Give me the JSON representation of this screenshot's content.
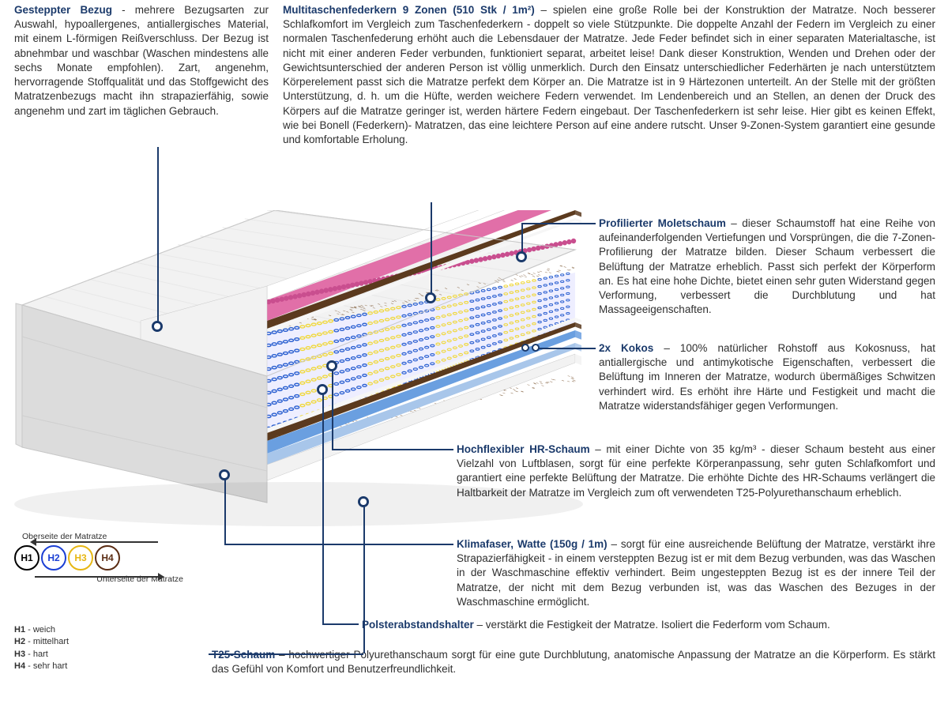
{
  "sections": {
    "gesteppter": {
      "title": "Gesteppter Bezug",
      "body": " - mehrere Bezugsarten zur Auswahl, hypoallergenes, antiallergisches Material, mit einem L-förmigen Reißverschluss. Der Bezug ist abnehmbar und waschbar (Waschen mindestens alle sechs Monate empfohlen). Zart, angenehm, hervorragende Stoffqualität und das Stoffgewicht des Matratzenbezugs macht ihn strapazierfähig, sowie angenehm und zart im täglichen Gebrauch."
    },
    "multitaschen": {
      "title": "Multitaschenfederkern 9 Zonen (510 Stk / 1m²)",
      "body": " – spielen eine große Rolle bei der Konstruktion der Matratze. Noch besserer Schlafkomfort im Vergleich zum Taschenfederkern - doppelt so viele Stützpunkte. Die doppelte Anzahl der Federn im Vergleich zu einer normalen Taschenfederung erhöht auch die Lebensdauer der Matratze. Jede Feder befindet sich in einer separaten Materialtasche, ist nicht mit einer anderen Feder verbunden, funktioniert separat, arbeitet leise! Dank dieser Konstruktion, Wenden und Drehen oder der Gewichtsunterschied der anderen Person ist völlig unmerklich. Durch den Einsatz unterschiedlicher Federhärten je nach unterstütztem Körperelement passt sich die Matratze perfekt dem Körper an. Die Matratze ist in 9 Härtezonen unterteilt. An der Stelle mit der größten Unterstützung, d. h. um die Hüfte, werden weichere Federn verwendet. Im Lendenbereich und an Stellen, an denen der Druck des Körpers auf die Matratze geringer ist, werden härtere Federn eingebaut. Der Taschenfederkern ist sehr leise. Hier gibt es keinen Effekt, wie bei Bonell (Federkern)- Matratzen, das eine leichtere Person auf eine andere rutscht. Unser 9-Zonen-System garantiert eine gesunde und komfortable Erholung."
    },
    "molet": {
      "title": "Profilierter Moletschaum",
      "body": " – dieser Schaumstoff hat eine Reihe von aufeinanderfolgenden Vertiefungen und Vorsprüngen, die die 7-Zonen-Profilierung der Matratze bilden. Dieser Schaum verbessert die Belüftung der Matratze erheblich. Passt sich perfekt der Körperform an. Es hat eine hohe Dichte, bietet einen sehr guten Widerstand gegen Verformung, verbessert die Durchblutung und hat Massageeigenschaften."
    },
    "kokos": {
      "title": "2x Kokos",
      "body": " – 100% natürlicher Rohstoff aus Kokosnuss, hat antiallergische und antimykotische Eigenschaften, verbessert die Belüftung im Inneren der Matratze, wodurch übermäßiges Schwitzen verhindert wird. Es erhöht ihre Härte und Festigkeit und macht die Matratze widerstandsfähiger gegen Verformungen."
    },
    "hr": {
      "title": "Hochflexibler HR-Schaum",
      "body": " – mit einer Dichte von 35 kg/m³ - dieser Schaum besteht aus einer Vielzahl von Luftblasen, sorgt für eine perfekte Körperanpassung, sehr guten Schlafkomfort und garantiert eine perfekte Belüftung der Matratze. Die erhöhte Dichte des HR-Schaums verlängert die Haltbarkeit der Matratze im Vergleich zum oft verwendeten T25-Polyurethanschaum erheblich."
    },
    "klima": {
      "title": "Klimafaser, Watte (150g / 1m)",
      "body": " – sorgt für eine ausreichende Belüftung der Matratze, verstärkt ihre Strapazierfähigkeit - in einem versteppten Bezug ist er mit dem Bezug verbunden, was das Waschen in der Waschmaschine effektiv verhindert. Beim ungesteppten Bezug ist es der innere Teil der Matratze, der nicht mit dem Bezug verbunden ist, was das Waschen des Bezuges in der Waschmaschine ermöglicht."
    },
    "polster": {
      "title": "Polsterabstandshalter",
      "body": " – verstärkt die Festigkeit der Matratze. Isoliert die Federform vom Schaum."
    },
    "t25": {
      "title": "T25-Schaum",
      "body": " – hochwertiger Polyurethanschaum sorgt für eine gute Durchblutung, anatomische Anpassung der Matratze an die Körperform. Es stärkt das Gefühl von Komfort und Benutzerfreundlichkeit."
    }
  },
  "legend": {
    "topLabel": "Oberseite der Matratze",
    "bottomLabel": "Unterseite der Matratze",
    "items": [
      {
        "code": "H1",
        "color": "#000000"
      },
      {
        "code": "H2",
        "color": "#1b3fd4"
      },
      {
        "code": "H3",
        "color": "#e7b714"
      },
      {
        "code": "H4",
        "color": "#5b2d14"
      }
    ],
    "hardness": [
      {
        "code": "H1",
        "label": "weich"
      },
      {
        "code": "H2",
        "label": "mittelhart"
      },
      {
        "code": "H3",
        "label": "hart"
      },
      {
        "code": "H4",
        "label": "sehr hart"
      }
    ]
  },
  "illustration": {
    "cover_color": "#f2f2f2",
    "cover_shadow": "#dcdcdc",
    "foam_white": "#ffffff",
    "molet_pink": "#e16fa8",
    "molet_pink_dark": "#c94e8f",
    "kokos_color": "#5b3a1e",
    "kokos_texture": "#7a5530",
    "hr_blue": "#6a9fe0",
    "t25_blue": "#a8c6ea",
    "spring_blue": "#2a5fd0",
    "spring_yellow": "#f0d83a",
    "outline": "#c8c8c8",
    "zones": [
      "blue",
      "yellow",
      "blue",
      "yellow",
      "blue",
      "yellow",
      "blue",
      "yellow",
      "blue"
    ]
  },
  "indicator_color": "#1b3a6b"
}
